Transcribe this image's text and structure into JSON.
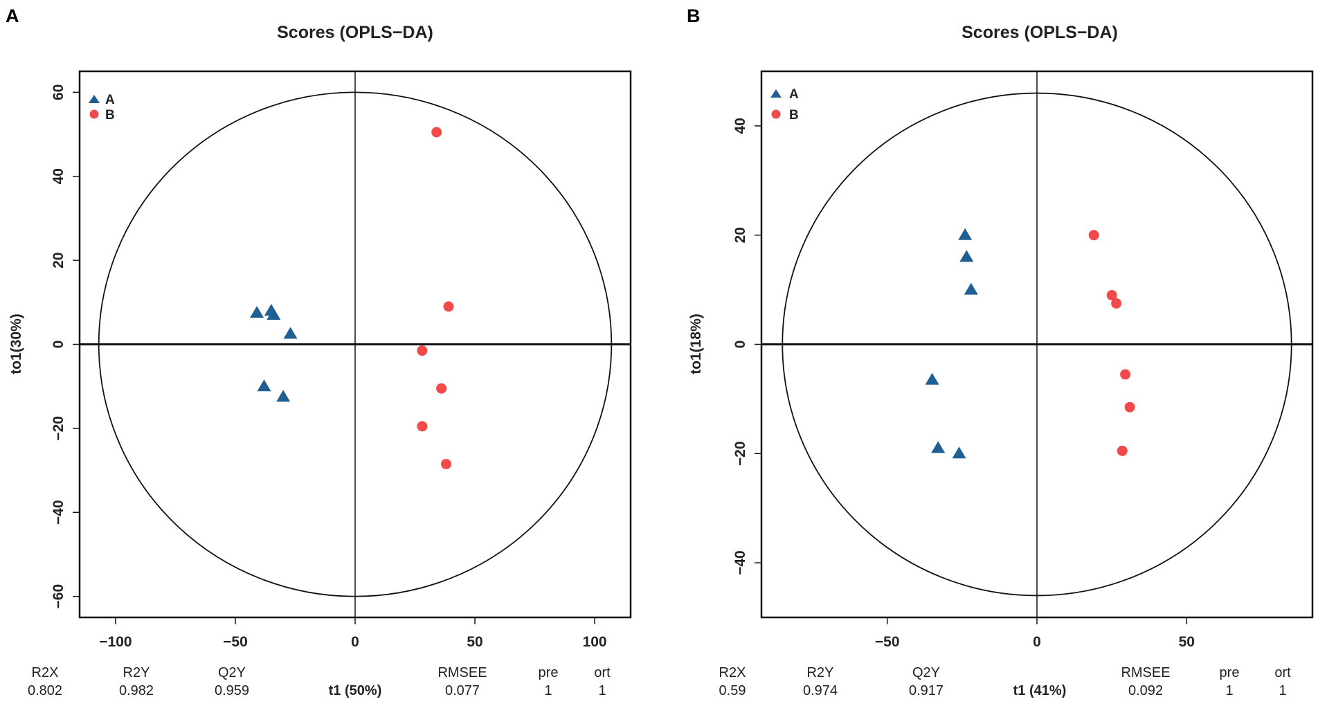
{
  "colors": {
    "A": "#1f5f94",
    "B": "#f04a4a",
    "ink": "#111111"
  },
  "chart_data": [
    {
      "panel": "A",
      "type": "scatter",
      "title": "Scores (OPLS−DA)",
      "ylabel": "to1(30%)",
      "xlabel_prefix": "t1",
      "xlabel_pct": "(50%)",
      "xlim": [
        -115,
        115
      ],
      "ylim": [
        -65,
        65
      ],
      "xticks": [
        -100,
        -50,
        0,
        50,
        100
      ],
      "xtick_labels": [
        "−100",
        "−50",
        "0",
        "50",
        "100"
      ],
      "yticks": [
        -60,
        -40,
        -20,
        0,
        20,
        40,
        60
      ],
      "ytick_labels": [
        "−60",
        "−40",
        "−20",
        "0",
        "20",
        "40",
        "60"
      ],
      "ellipse": {
        "rx": 107,
        "ry": 60
      },
      "legend": [
        {
          "label": "A",
          "shape": "triangle"
        },
        {
          "label": "B",
          "shape": "circle"
        }
      ],
      "series": [
        {
          "name": "A",
          "shape": "triangle",
          "points": [
            [
              -41,
              7.5
            ],
            [
              -35,
              8
            ],
            [
              -34,
              7
            ],
            [
              -27,
              2.5
            ],
            [
              -38,
              -10
            ],
            [
              -30,
              -12.5
            ]
          ]
        },
        {
          "name": "B",
          "shape": "circle",
          "points": [
            [
              34,
              50.5
            ],
            [
              39,
              9
            ],
            [
              28,
              -1.5
            ],
            [
              36,
              -10.5
            ],
            [
              28,
              -19.5
            ],
            [
              38,
              -28.5
            ]
          ]
        }
      ],
      "stats": {
        "headers": [
          "R2X",
          "R2Y",
          "Q2Y",
          "RMSEE",
          "pre",
          "ort"
        ],
        "values": [
          "0.802",
          "0.982",
          "0.959",
          "0.077",
          "1",
          "1"
        ]
      }
    },
    {
      "panel": "B",
      "type": "scatter",
      "title": "Scores (OPLS−DA)",
      "ylabel": "to1(18%)",
      "xlabel_prefix": "t1",
      "xlabel_pct": "(41%)",
      "xlim": [
        -92,
        92
      ],
      "ylim": [
        -50,
        50
      ],
      "xticks": [
        -50,
        0,
        50
      ],
      "xtick_labels": [
        "−50",
        "0",
        "50"
      ],
      "yticks": [
        -40,
        -20,
        0,
        20,
        40
      ],
      "ytick_labels": [
        "−40",
        "−20",
        "0",
        "20",
        "40"
      ],
      "ellipse": {
        "rx": 85,
        "ry": 46
      },
      "legend": [
        {
          "label": "A",
          "shape": "triangle"
        },
        {
          "label": "B",
          "shape": "circle"
        }
      ],
      "series": [
        {
          "name": "A",
          "shape": "triangle",
          "points": [
            [
              -24,
              20
            ],
            [
              -23.5,
              16
            ],
            [
              -22,
              10
            ],
            [
              -35,
              -6.5
            ],
            [
              -33,
              -19
            ],
            [
              -26,
              -20
            ]
          ]
        },
        {
          "name": "B",
          "shape": "circle",
          "points": [
            [
              19,
              20
            ],
            [
              25,
              9
            ],
            [
              26.5,
              7.5
            ],
            [
              29.5,
              -5.5
            ],
            [
              31,
              -11.5
            ],
            [
              28.5,
              -19.5
            ]
          ]
        }
      ],
      "stats": {
        "headers": [
          "R2X",
          "R2Y",
          "Q2Y",
          "RMSEE",
          "pre",
          "ort"
        ],
        "values": [
          "0.59",
          "0.974",
          "0.917",
          "0.092",
          "1",
          "1"
        ]
      }
    }
  ]
}
